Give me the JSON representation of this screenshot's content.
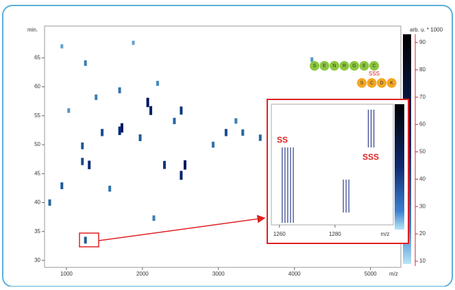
{
  "chart_data": {
    "type": "heatmap",
    "x_label": "m/z",
    "y_label": "min.",
    "colorbar_label": "arb. u. * 1000",
    "xlim": [
      712,
      5400
    ],
    "xticks": [
      1000,
      2000,
      3000,
      4000,
      5000
    ],
    "ylim": [
      28.8,
      70.5
    ],
    "yticks": [
      30,
      35,
      40,
      45,
      50,
      55,
      60,
      65
    ],
    "clim": [
      9,
      93
    ],
    "cticks": [
      10,
      20,
      30,
      40,
      50,
      60,
      70,
      80,
      90
    ],
    "spots": {
      "x": [
        2070,
        2110,
        1730,
        1700,
        2510,
        2560,
        2510,
        2290,
        1300,
        1210,
        1210,
        1470,
        3100,
        3320,
        1390,
        1250,
        1700,
        2200,
        940,
        780,
        1570,
        1250,
        2150,
        3550,
        4230,
        1030,
        1970,
        2930,
        940,
        1880,
        3230,
        2420
      ],
      "y": [
        57.3,
        55.9,
        52.9,
        52.4,
        55.9,
        46.5,
        44.7,
        46.5,
        46.5,
        47.1,
        49.8,
        52.1,
        52.1,
        52.1,
        58.2,
        64.1,
        59.4,
        60.6,
        42.9,
        40,
        42.4,
        33.5,
        37.3,
        51.2,
        64.7,
        55.9,
        51.2,
        50,
        67,
        67.6,
        54.1,
        54.1
      ],
      "intensity": [
        85,
        80,
        85,
        75,
        70,
        85,
        80,
        70,
        75,
        60,
        55,
        60,
        60,
        50,
        40,
        40,
        45,
        35,
        55,
        50,
        45,
        55,
        40,
        50,
        30,
        30,
        55,
        45,
        25,
        25,
        40,
        50
      ]
    },
    "peptide_1": [
      "S",
      "E",
      "N",
      "R",
      "G",
      "E",
      "C"
    ],
    "peptide_2": [
      "S",
      "C",
      "D",
      "K"
    ],
    "link_label": "SSS",
    "inset": {
      "xlim": [
        1257.1,
        1301
      ],
      "xticks": [
        1260,
        1280
      ],
      "x_label": "m/z",
      "streaks": [
        1261,
        1262,
        1263,
        1264,
        1265,
        1283,
        1284,
        1285,
        1292,
        1293,
        1294
      ],
      "labels": [
        "SS",
        "SSS"
      ]
    }
  }
}
